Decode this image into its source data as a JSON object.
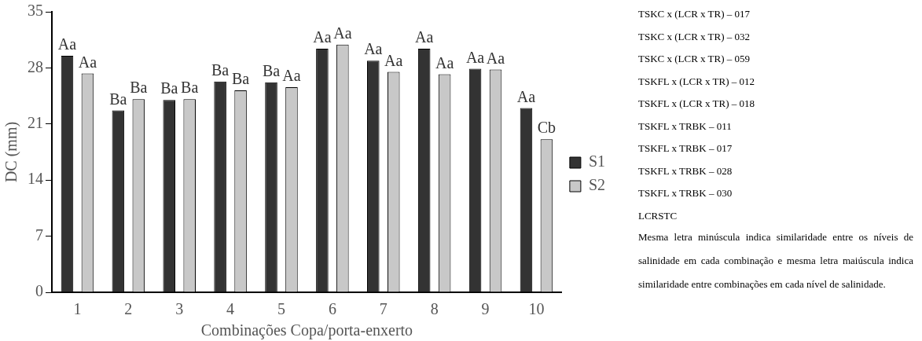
{
  "chart_data": {
    "type": "bar",
    "xlabel": "Combinações Copa/porta-enxerto",
    "ylabel": "DC (mm)",
    "categories": [
      "1",
      "2",
      "3",
      "4",
      "5",
      "6",
      "7",
      "8",
      "9",
      "10"
    ],
    "series": [
      {
        "name": "S1",
        "color": "#333333",
        "values": [
          29.5,
          22.7,
          24.0,
          26.3,
          26.2,
          30.4,
          28.9,
          30.4,
          27.9,
          23.0
        ],
        "value_labels": [
          "Aa",
          "Ba",
          "Ba",
          "Ba",
          "Ba",
          "Aa",
          "Aa",
          "Aa",
          "Aa",
          "Aa"
        ]
      },
      {
        "name": "S2",
        "color": "#c8c8c8",
        "values": [
          27.3,
          24.1,
          24.1,
          25.2,
          25.6,
          30.9,
          27.5,
          27.2,
          27.8,
          19.1
        ],
        "value_labels": [
          "Aa",
          "Ba",
          "Ba",
          "Ba",
          "Aa",
          "Aa",
          "Aa",
          "Aa",
          "Aa",
          "Cb"
        ]
      }
    ],
    "ylim": [
      0,
      35
    ],
    "yticks": [
      0,
      7,
      14,
      21,
      28,
      35
    ],
    "grid": false,
    "legend": "right",
    "annotations": [
      "TSKC x (LCR x TR) – 017",
      "TSKC x (LCR x TR) – 032",
      "TSKC x (LCR x TR) – 059",
      "TSKFL x (LCR x TR) – 012",
      "TSKFL x (LCR x TR) – 018",
      "TSKFL x TRBK – 011",
      "TSKFL x TRBK – 017",
      "TSKFL x TRBK – 028",
      "TSKFL x TRBK – 030",
      "LCRSTC",
      "Mesma letra minúscula indica similaridade entre os níveis de salinidade em cada combinação e mesma letra maiúscula indica similaridade entre combinações em cada nível de salinidade."
    ]
  }
}
